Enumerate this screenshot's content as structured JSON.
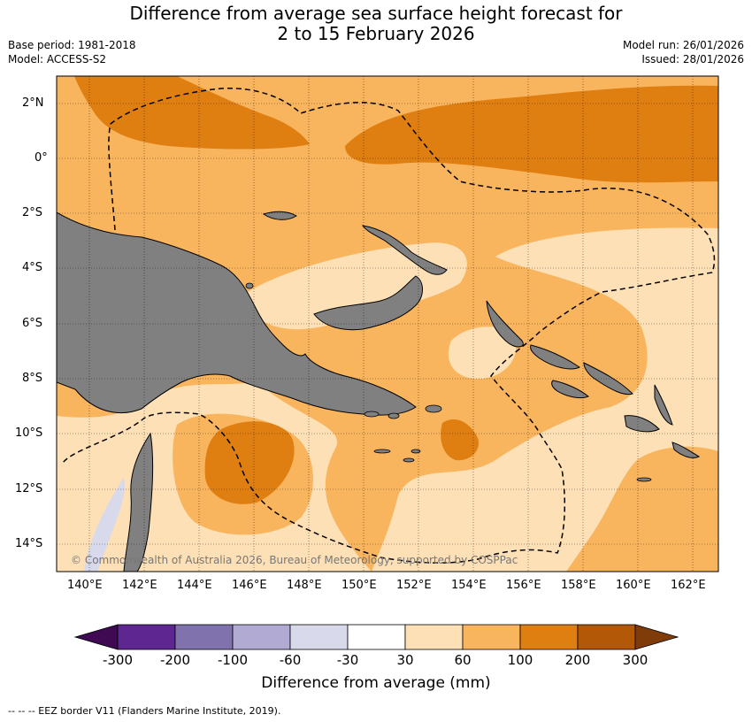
{
  "header": {
    "title_line1": "Difference from average sea surface height forecast for",
    "title_line2": "2 to 15 February 2026",
    "base_period": "Base period: 1981-2018",
    "model": "Model: ACCESS-S2",
    "model_run": "Model run: 26/01/2026",
    "issued": "Issued: 28/01/2026"
  },
  "map": {
    "lat_labels": [
      "2°N",
      "0°",
      "2°S",
      "4°S",
      "6°S",
      "8°S",
      "10°S",
      "12°S",
      "14°S"
    ],
    "lon_labels": [
      "140°E",
      "142°E",
      "144°E",
      "146°E",
      "148°E",
      "150°E",
      "152°E",
      "154°E",
      "156°E",
      "158°E",
      "160°E",
      "162°E"
    ],
    "copyright": "© Commonwealth of Australia 2026, Bureau of Meteorology, supported by COSPPac",
    "colors": {
      "land": "#808080",
      "band_30_60": "#fde0b6",
      "band_60_100": "#f9b45e",
      "band_100_200": "#df7f12",
      "band_neg": "#d8d9ea"
    }
  },
  "colorbar": {
    "title": "Difference from average (mm)",
    "tick_labels": [
      "-300",
      "-200",
      "-100",
      "-60",
      "-30",
      "30",
      "60",
      "100",
      "200",
      "300"
    ],
    "colors": [
      "#3f0a52",
      "#5e2690",
      "#8073ad",
      "#b1aad2",
      "#d8d9ea",
      "#ffffff",
      "#fde0b6",
      "#f9b45e",
      "#df7f12",
      "#b35806",
      "#7f3b08"
    ]
  },
  "footer": {
    "eez_note": "--  --  -- EEZ border V11 (Flanders Marine Institute, 2019)."
  }
}
